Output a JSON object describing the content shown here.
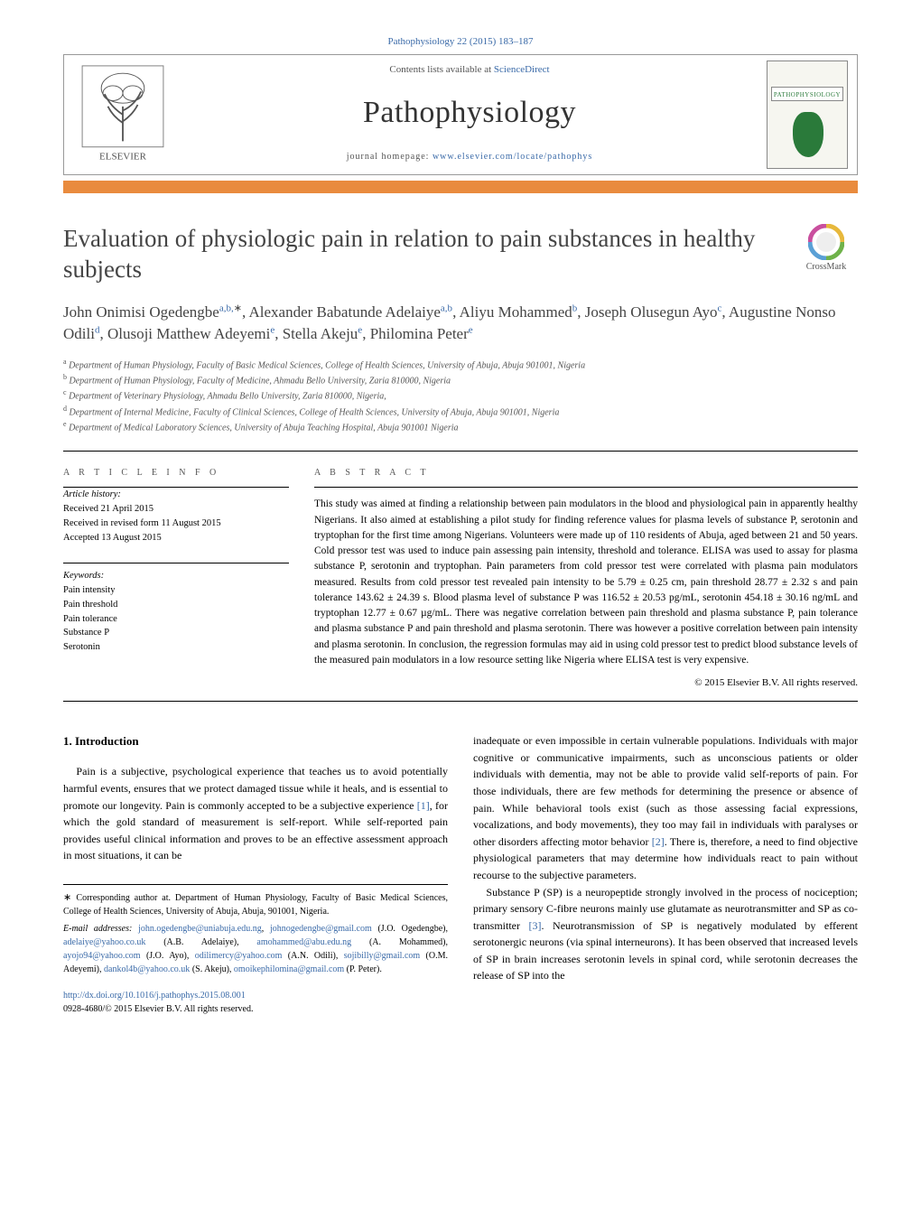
{
  "journal": {
    "citation_header": "Pathophysiology 22 (2015) 183–187",
    "contents_prefix": "Contents lists available at ",
    "contents_link_text": "ScienceDirect",
    "name": "Pathophysiology",
    "homepage_prefix": "journal homepage: ",
    "homepage_url": "www.elsevier.com/locate/pathophys",
    "cover_label": "PATHOPHYSIOLOGY",
    "publisher_label": "ELSEVIER"
  },
  "crossmark": {
    "label": "CrossMark",
    "ring_colors": [
      "#c94f9e",
      "#e7b83c",
      "#5aa0d6",
      "#6fb24a"
    ]
  },
  "article": {
    "title": "Evaluation of physiologic pain in relation to pain substances in healthy subjects",
    "authors_html": "John Onimisi Ogedengbe<sup>a,b,</sup><sup class='star'>∗</sup>, Alexander Babatunde Adelaiye<sup>a,b</sup>, Aliyu Mohammed<sup>b</sup>, Joseph Olusegun Ayo<sup>c</sup>, Augustine Nonso Odili<sup>d</sup>, Olusoji Matthew Adeyemi<sup>e</sup>, Stella Akeju<sup>e</sup>, Philomina Peter<sup>e</sup>",
    "affiliations": [
      {
        "key": "a",
        "text": "Department of Human Physiology, Faculty of Basic Medical Sciences, College of Health Sciences, University of Abuja, Abuja 901001, Nigeria"
      },
      {
        "key": "b",
        "text": "Department of Human Physiology, Faculty of Medicine, Ahmadu Bello University, Zaria 810000, Nigeria"
      },
      {
        "key": "c",
        "text": "Department of Veterinary Physiology, Ahmadu Bello University, Zaria 810000, Nigeria,"
      },
      {
        "key": "d",
        "text": "Department of Internal Medicine, Faculty of Clinical Sciences, College of Health Sciences, University of Abuja, Abuja 901001, Nigeria"
      },
      {
        "key": "e",
        "text": "Department of Medical Laboratory Sciences, University of Abuja Teaching Hospital, Abuja 901001 Nigeria"
      }
    ]
  },
  "info": {
    "heading": "A R T I C L E   I N F O",
    "history_label": "Article history:",
    "history": [
      "Received 21 April 2015",
      "Received in revised form 11 August 2015",
      "Accepted 13 August 2015"
    ],
    "keywords_label": "Keywords:",
    "keywords": [
      "Pain intensity",
      "Pain threshold",
      "Pain tolerance",
      "Substance P",
      "Serotonin"
    ]
  },
  "abstract": {
    "heading": "A B S T R A C T",
    "text": "This study was aimed at finding a relationship between pain modulators in the blood and physiological pain in apparently healthy Nigerians. It also aimed at establishing a pilot study for finding reference values for plasma levels of substance P, serotonin and tryptophan for the first time among Nigerians. Volunteers were made up of 110 residents of Abuja, aged between 21 and 50 years. Cold pressor test was used to induce pain assessing pain intensity, threshold and tolerance. ELISA was used to assay for plasma substance P, serotonin and tryptophan. Pain parameters from cold pressor test were correlated with plasma pain modulators measured. Results from cold pressor test revealed pain intensity to be 5.79 ± 0.25 cm, pain threshold 28.77 ± 2.32 s and pain tolerance 143.62 ± 24.39 s. Blood plasma level of substance P was 116.52 ± 20.53 pg/mL, serotonin 454.18 ± 30.16 ng/mL and tryptophan 12.77 ± 0.67 µg/mL. There was negative correlation between pain threshold and plasma substance P, pain tolerance and plasma substance P and pain threshold and plasma serotonin. There was however a positive correlation between pain intensity and plasma serotonin. In conclusion, the regression formulas may aid in using cold pressor test to predict blood substance levels of the measured pain modulators in a low resource setting like Nigeria where ELISA test is very expensive.",
    "copyright": "© 2015 Elsevier B.V. All rights reserved."
  },
  "body": {
    "section_heading": "1.  Introduction",
    "col1_p1": "Pain is a subjective, psychological experience that teaches us to avoid potentially harmful events, ensures that we protect damaged tissue while it heals, and is essential to promote our longevity. Pain is commonly accepted to be a subjective experience [1], for which the gold standard of measurement is self-report. While self-reported pain provides useful clinical information and proves to be an effective assessment approach in most situations, it can be",
    "col2_p1": "inadequate or even impossible in certain vulnerable populations. Individuals with major cognitive or communicative impairments, such as unconscious patients or older individuals with dementia, may not be able to provide valid self-reports of pain. For those individuals, there are few methods for determining the presence or absence of pain. While behavioral tools exist (such as those assessing facial expressions, vocalizations, and body movements), they too may fail in individuals with paralyses or other disorders affecting motor behavior [2]. There is, therefore, a need to find objective physiological parameters that may determine how individuals react to pain without recourse to the subjective parameters.",
    "col2_p2": "Substance P (SP) is a neuropeptide strongly involved in the process of nociception; primary sensory C-fibre neurons mainly use glutamate as neurotransmitter and SP as co-transmitter [3]. Neurotransmission of SP is negatively modulated by efferent serotonergic neurons (via spinal interneurons). It has been observed that increased levels of SP in brain increases serotonin levels in spinal cord, while serotonin decreases the release of SP into the"
  },
  "footnotes": {
    "corr": "Corresponding author at. Department of Human Physiology, Faculty of Basic Medical Sciences, College of Health Sciences, University of Abuja, Abuja, 901001, Nigeria.",
    "email_label": "E-mail addresses:",
    "emails": [
      {
        "addr": "john.ogedengbe@uniabuja.edu.ng",
        "who": ""
      },
      {
        "addr": "johnogedengbe@gmail.com",
        "who": "(J.O. Ogedengbe)"
      },
      {
        "addr": "adelaiye@yahoo.co.uk",
        "who": "(A.B. Adelaiye)"
      },
      {
        "addr": "amohammed@abu.edu.ng",
        "who": "(A. Mohammed)"
      },
      {
        "addr": "ayojo94@yahoo.com",
        "who": "(J.O. Ayo)"
      },
      {
        "addr": "odilimercy@yahoo.com",
        "who": "(A.N. Odili)"
      },
      {
        "addr": "sojibilly@gmail.com",
        "who": "(O.M. Adeyemi)"
      },
      {
        "addr": "dankol4b@yahoo.co.uk",
        "who": "(S. Akeju)"
      },
      {
        "addr": "omoikephilomina@gmail.com",
        "who": "(P. Peter)"
      }
    ],
    "doi": "http://dx.doi.org/10.1016/j.pathophys.2015.08.001",
    "issn_line": "0928-4680/© 2015 Elsevier B.V. All rights reserved."
  },
  "colors": {
    "accent_bar": "#e98b3e",
    "link": "#3a6aa8",
    "rule": "#000000",
    "text": "#000000",
    "muted": "#555555"
  }
}
